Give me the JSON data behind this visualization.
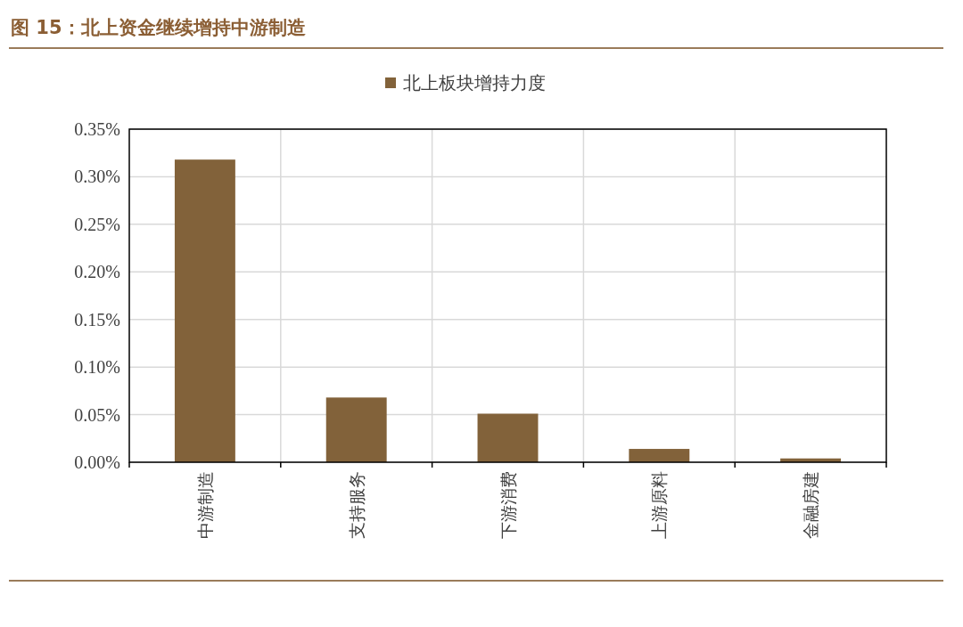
{
  "chart_data": {
    "type": "bar",
    "title": "图 15：北上资金继续增持中游制造",
    "categories": [
      "中游制造",
      "支持服务",
      "下游消费",
      "上游原料",
      "金融房建"
    ],
    "series": [
      {
        "name": "北上板块增持力度",
        "color": "#82623a",
        "values": [
          0.318,
          0.068,
          0.051,
          0.014,
          0.004
        ]
      }
    ],
    "ylim": [
      0,
      0.35
    ],
    "yticks": [
      {
        "value": 0,
        "label": "0.00%"
      },
      {
        "value": 0.05,
        "label": "0.05%"
      },
      {
        "value": 0.1,
        "label": "0.10%"
      },
      {
        "value": 0.15,
        "label": "0.15%"
      },
      {
        "value": 0.2,
        "label": "0.20%"
      },
      {
        "value": 0.25,
        "label": "0.25%"
      },
      {
        "value": 0.3,
        "label": "0.30%"
      },
      {
        "value": 0.35,
        "label": "0.35%"
      }
    ],
    "grid": true,
    "legend": "top"
  }
}
